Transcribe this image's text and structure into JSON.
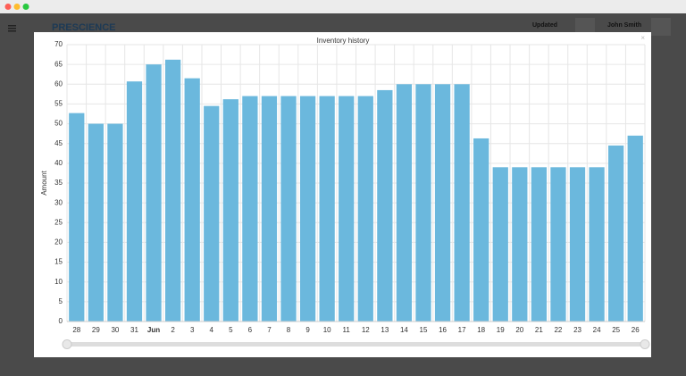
{
  "app": {
    "brand": "PRESCIENCE",
    "status": "Updated",
    "user": "John Smith"
  },
  "chart_data": {
    "type": "bar",
    "title": "Inventory history",
    "y_label": "Amount",
    "categories": [
      "28",
      "29",
      "30",
      "31",
      "Jun",
      "2",
      "3",
      "4",
      "5",
      "6",
      "7",
      "8",
      "9",
      "10",
      "11",
      "12",
      "13",
      "14",
      "15",
      "16",
      "17",
      "18",
      "19",
      "20",
      "21",
      "22",
      "23",
      "24",
      "25",
      "26"
    ],
    "values": [
      52.7,
      50,
      50,
      60.7,
      65,
      66.2,
      61.5,
      54.5,
      56.2,
      57,
      57,
      57,
      57,
      57,
      57,
      57,
      58.5,
      60,
      60,
      60,
      60,
      46.3,
      39,
      39,
      39,
      39,
      39,
      39,
      44.5,
      47
    ],
    "color": "#6bb8dd",
    "ylim": [
      0,
      70
    ],
    "yticks": [
      0,
      5,
      10,
      15,
      20,
      25,
      30,
      35,
      40,
      45,
      50,
      55,
      60,
      65,
      70
    ],
    "grid": true
  }
}
